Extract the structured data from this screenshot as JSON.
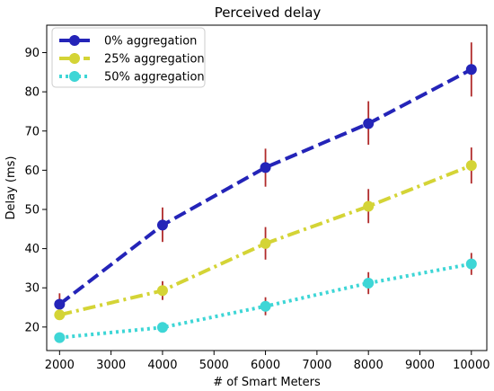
{
  "chart_data": {
    "type": "line",
    "title": "Perceived delay",
    "xlabel": "# of Smart Meters",
    "ylabel": "Delay (ms)",
    "xlim": [
      1750,
      10300
    ],
    "ylim": [
      14,
      97
    ],
    "xticks": [
      2000,
      3000,
      4000,
      5000,
      6000,
      7000,
      8000,
      9000,
      10000
    ],
    "yticks": [
      20,
      30,
      40,
      50,
      60,
      70,
      80,
      90
    ],
    "grid": false,
    "legend_position": "top-left",
    "x": [
      2000,
      4000,
      6000,
      8000,
      10000
    ],
    "series": [
      {
        "name": "0% aggregation",
        "color": "#2424b8",
        "dash": "dashed",
        "values": [
          25.8,
          46.0,
          60.7,
          71.9,
          85.7
        ],
        "err_low": [
          22.8,
          41.7,
          55.8,
          66.5,
          78.8
        ],
        "err_high": [
          28.6,
          50.5,
          65.5,
          77.6,
          92.6
        ]
      },
      {
        "name": "25% aggregation",
        "color": "#d4d436",
        "dash": "dashdot",
        "values": [
          23.1,
          29.3,
          41.3,
          50.8,
          61.2
        ],
        "err_low": [
          21.8,
          26.9,
          37.2,
          46.5,
          56.6
        ],
        "err_high": [
          24.4,
          31.7,
          45.5,
          55.2,
          65.8
        ]
      },
      {
        "name": "50% aggregation",
        "color": "#3ed6d6",
        "dash": "dotted",
        "values": [
          17.3,
          19.9,
          25.3,
          31.2,
          36.1
        ],
        "err_low": [
          16.6,
          18.9,
          23.0,
          28.4,
          33.3
        ],
        "err_high": [
          18.0,
          20.9,
          27.6,
          34.0,
          38.9
        ]
      }
    ],
    "error_bar_color": "#b02a2a"
  }
}
